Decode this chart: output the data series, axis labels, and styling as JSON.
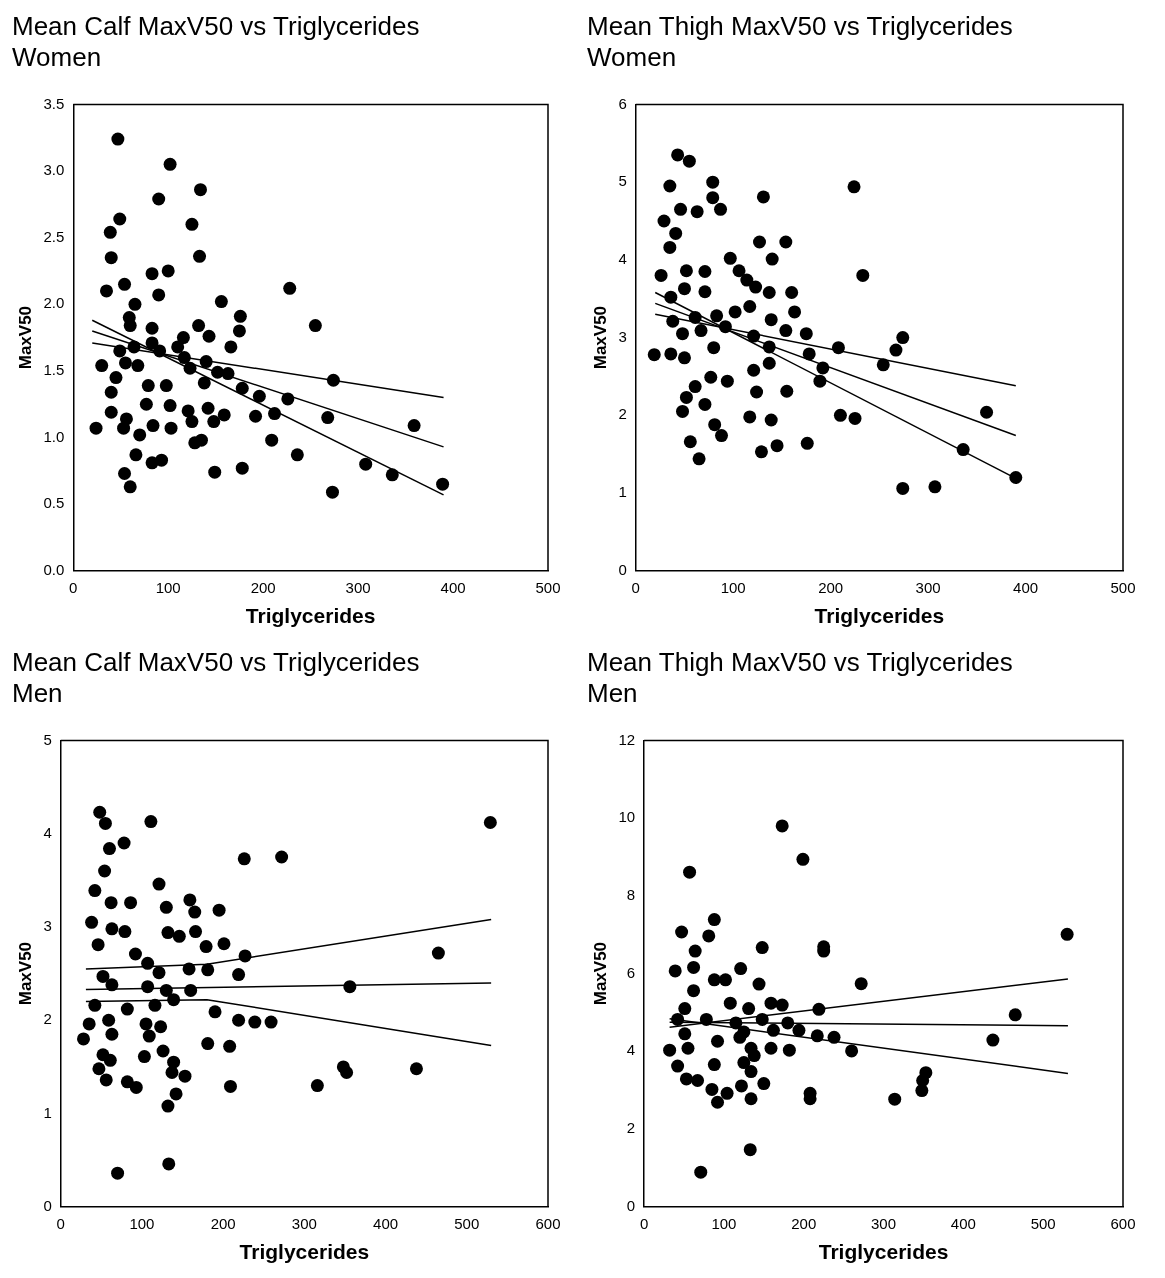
{
  "chart_data": [
    {
      "type": "scatter",
      "title": "Mean Calf MaxV50 vs Triglycerides",
      "subtitle": "Women",
      "xlabel": "Triglycerides",
      "ylabel": "MaxV50",
      "xlim": [
        0,
        500
      ],
      "xticks": [
        0,
        100,
        200,
        300,
        400,
        500
      ],
      "ylim": [
        0,
        3.5
      ],
      "yticks": [
        {
          "value": 0,
          "label": "0.0"
        },
        0.5,
        {
          "value": 1,
          "label": "1.0"
        },
        1.5,
        {
          "value": 2,
          "label": "2.0"
        },
        2.5,
        {
          "value": 3,
          "label": "3.0"
        },
        3.5
      ],
      "grid": false,
      "legend": false,
      "marker": "circle",
      "series": [
        {
          "color": "#000000",
          "x": [
            47,
            102,
            90,
            134,
            49,
            39,
            125,
            40,
            133,
            83,
            100,
            35,
            54,
            90,
            228,
            156,
            176,
            175,
            255,
            65,
            59,
            83,
            132,
            143,
            166,
            116,
            30,
            49,
            64,
            68,
            91,
            117,
            140,
            163,
            45,
            40,
            79,
            98,
            138,
            178,
            196,
            226,
            274,
            77,
            102,
            121,
            142,
            159,
            192,
            212,
            268,
            40,
            56,
            24,
            53,
            84,
            103,
            125,
            148,
            359,
            70,
            135,
            128,
            209,
            66,
            83,
            93,
            54,
            60,
            149,
            178,
            236,
            308,
            336,
            389,
            273,
            60,
            55,
            83,
            123,
            110,
            152
          ],
          "values": [
            3.24,
            3.05,
            2.79,
            2.86,
            2.64,
            2.54,
            2.6,
            2.35,
            2.36,
            2.23,
            2.25,
            2.1,
            2.15,
            2.07,
            2.12,
            2.02,
            1.91,
            1.8,
            1.84,
            2.0,
            1.9,
            1.82,
            1.84,
            1.76,
            1.68,
            1.75,
            1.54,
            1.65,
            1.68,
            1.54,
            1.65,
            1.6,
            1.57,
            1.48,
            1.45,
            1.34,
            1.39,
            1.39,
            1.41,
            1.37,
            1.31,
            1.29,
            1.43,
            1.25,
            1.24,
            1.2,
            1.22,
            1.17,
            1.16,
            1.18,
            1.15,
            1.19,
            1.14,
            1.07,
            1.07,
            1.09,
            1.07,
            1.12,
            1.12,
            1.09,
            1.02,
            0.98,
            0.96,
            0.98,
            0.87,
            0.81,
            0.83,
            0.73,
            0.63,
            0.74,
            0.77,
            0.87,
            0.8,
            0.72,
            0.65,
            0.59,
            1.84,
            1.56,
            1.71,
            1.52,
            1.68,
            1.49
          ]
        },
        {
          "type": "line",
          "marker": "none",
          "color": "#000000",
          "x": [
            20,
            390
          ],
          "values": [
            1.88,
            0.57
          ]
        },
        {
          "type": "line",
          "marker": "none",
          "color": "#000000",
          "x": [
            20,
            390
          ],
          "values": [
            1.71,
            1.3
          ]
        },
        {
          "type": "line",
          "marker": "none",
          "color": "#000000",
          "x": [
            20,
            390
          ],
          "values": [
            1.8,
            0.93
          ]
        }
      ]
    },
    {
      "type": "scatter",
      "title": "Mean Thigh MaxV50 vs Triglycerides",
      "subtitle": "Women",
      "xlabel": "Triglycerides",
      "ylabel": "MaxV50",
      "xlim": [
        0,
        500
      ],
      "xticks": [
        0,
        100,
        200,
        300,
        400,
        500
      ],
      "ylim": [
        0,
        6
      ],
      "yticks": [
        0,
        1,
        2,
        3,
        4,
        5,
        6
      ],
      "grid": false,
      "legend": false,
      "marker": "circle",
      "series": [
        {
          "color": "#000000",
          "x": [
            43,
            55,
            35,
            79,
            131,
            224,
            79,
            87,
            46,
            63,
            29,
            41,
            35,
            127,
            154,
            140,
            97,
            233,
            26,
            52,
            71,
            106,
            36,
            50,
            71,
            114,
            123,
            137,
            160,
            163,
            38,
            61,
            83,
            102,
            117,
            139,
            48,
            67,
            92,
            121,
            154,
            175,
            19,
            36,
            50,
            80,
            137,
            178,
            208,
            274,
            267,
            254,
            121,
            137,
            192,
            189,
            77,
            94,
            61,
            124,
            155,
            52,
            71,
            48,
            117,
            139,
            210,
            225,
            360,
            81,
            88,
            56,
            65,
            129,
            145,
            176,
            336,
            390,
            274,
            307
          ],
          "values": [
            5.35,
            5.27,
            4.95,
            5.0,
            4.81,
            4.94,
            4.8,
            4.65,
            4.65,
            4.62,
            4.5,
            4.34,
            4.16,
            4.23,
            4.23,
            4.01,
            4.02,
            3.8,
            3.8,
            3.86,
            3.85,
            3.86,
            3.52,
            3.63,
            3.59,
            3.74,
            3.65,
            3.58,
            3.58,
            3.33,
            3.21,
            3.26,
            3.28,
            3.33,
            3.4,
            3.23,
            3.05,
            3.09,
            3.14,
            3.02,
            3.09,
            3.05,
            2.78,
            2.79,
            2.74,
            2.87,
            2.88,
            2.79,
            2.87,
            3.0,
            2.84,
            2.65,
            2.58,
            2.67,
            2.61,
            2.44,
            2.49,
            2.44,
            2.37,
            2.3,
            2.31,
            2.23,
            2.14,
            2.05,
            1.98,
            1.94,
            2.0,
            1.96,
            2.04,
            1.88,
            1.74,
            1.66,
            1.44,
            1.53,
            1.61,
            1.64,
            1.56,
            1.2,
            1.06,
            1.08
          ]
        },
        {
          "type": "line",
          "marker": "none",
          "color": "#000000",
          "x": [
            20,
            390
          ],
          "values": [
            3.58,
            1.19
          ]
        },
        {
          "type": "line",
          "marker": "none",
          "color": "#000000",
          "x": [
            20,
            390
          ],
          "values": [
            3.3,
            2.38
          ]
        },
        {
          "type": "line",
          "marker": "none",
          "color": "#000000",
          "x": [
            20,
            390
          ],
          "values": [
            3.44,
            1.74
          ]
        }
      ]
    },
    {
      "type": "scatter",
      "title": "Mean Calf MaxV50 vs Triglycerides",
      "subtitle": "Men",
      "xlabel": "Triglycerides",
      "ylabel": "MaxV50",
      "xlim": [
        0,
        600
      ],
      "xticks": [
        0,
        100,
        200,
        300,
        400,
        500,
        600
      ],
      "ylim": [
        0,
        5
      ],
      "yticks": [
        0,
        1,
        2,
        3,
        4,
        5
      ],
      "grid": false,
      "legend": false,
      "marker": "circle",
      "series": [
        {
          "color": "#000000",
          "x": [
            48,
            55,
            111,
            529,
            60,
            78,
            226,
            272,
            54,
            42,
            121,
            62,
            86,
            130,
            159,
            165,
            195,
            38,
            63,
            79,
            132,
            146,
            166,
            46,
            179,
            201,
            92,
            227,
            465,
            107,
            158,
            181,
            52,
            121,
            219,
            63,
            107,
            130,
            160,
            356,
            42,
            82,
            116,
            139,
            190,
            35,
            59,
            105,
            123,
            219,
            239,
            259,
            28,
            63,
            109,
            181,
            208,
            126,
            52,
            103,
            139,
            61,
            47,
            137,
            153,
            348,
            352,
            438,
            56,
            82,
            93,
            209,
            316,
            142,
            132,
            133,
            70
          ],
          "values": [
            4.23,
            4.11,
            4.13,
            4.12,
            3.84,
            3.9,
            3.73,
            3.75,
            3.6,
            3.39,
            3.46,
            3.26,
            3.26,
            3.21,
            3.29,
            3.16,
            3.18,
            3.05,
            2.98,
            2.95,
            2.94,
            2.9,
            2.95,
            2.81,
            2.79,
            2.82,
            2.71,
            2.69,
            2.72,
            2.61,
            2.55,
            2.54,
            2.47,
            2.51,
            2.49,
            2.38,
            2.36,
            2.32,
            2.32,
            2.36,
            2.16,
            2.12,
            2.16,
            2.22,
            2.09,
            1.96,
            2.0,
            1.96,
            1.93,
            2.0,
            1.98,
            1.98,
            1.8,
            1.85,
            1.83,
            1.75,
            1.72,
            1.67,
            1.63,
            1.61,
            1.55,
            1.57,
            1.48,
            1.44,
            1.4,
            1.5,
            1.44,
            1.48,
            1.36,
            1.34,
            1.28,
            1.29,
            1.3,
            1.21,
            1.08,
            0.46,
            0.36
          ]
        },
        {
          "type": "line",
          "marker": "none",
          "color": "#000000",
          "x": [
            31,
            180,
            530
          ],
          "values": [
            2.55,
            2.6,
            3.08
          ]
        },
        {
          "type": "line",
          "marker": "none",
          "color": "#000000",
          "x": [
            31,
            530
          ],
          "values": [
            2.33,
            2.4
          ]
        },
        {
          "type": "line",
          "marker": "none",
          "color": "#000000",
          "x": [
            31,
            180,
            530
          ],
          "values": [
            2.2,
            2.22,
            1.73
          ]
        }
      ]
    },
    {
      "type": "scatter",
      "title": "Mean Thigh MaxV50 vs Triglycerides",
      "subtitle": "Men",
      "xlabel": "Triglycerides",
      "ylabel": "MaxV50",
      "xlim": [
        0,
        600
      ],
      "xticks": [
        0,
        100,
        200,
        300,
        400,
        500,
        600
      ],
      "ylim": [
        0,
        12
      ],
      "yticks": [
        0,
        2,
        4,
        6,
        8,
        10,
        12
      ],
      "grid": false,
      "legend": false,
      "marker": "circle",
      "series": [
        {
          "color": "#000000",
          "x": [
            173,
            199,
            57,
            88,
            47,
            81,
            530,
            64,
            148,
            225,
            225,
            39,
            62,
            121,
            102,
            272,
            88,
            144,
            62,
            51,
            108,
            131,
            159,
            173,
            219,
            465,
            42,
            78,
            115,
            148,
            180,
            194,
            51,
            92,
            125,
            162,
            217,
            238,
            437,
            32,
            55,
            120,
            134,
            159,
            182,
            260,
            42,
            88,
            125,
            138,
            53,
            67,
            134,
            150,
            353,
            349,
            85,
            104,
            122,
            92,
            134,
            208,
            208,
            314,
            348,
            133,
            71
          ],
          "values": [
            9.8,
            8.94,
            8.61,
            7.39,
            7.07,
            6.97,
            7.01,
            6.58,
            6.67,
            6.69,
            6.58,
            6.07,
            6.16,
            6.13,
            5.84,
            5.74,
            5.84,
            5.73,
            5.56,
            5.1,
            5.24,
            5.1,
            5.24,
            5.19,
            5.08,
            4.94,
            4.82,
            4.82,
            4.73,
            4.82,
            4.73,
            4.54,
            4.45,
            4.26,
            4.5,
            4.54,
            4.4,
            4.36,
            4.29,
            4.03,
            4.08,
            4.36,
            4.08,
            4.08,
            4.03,
            4.01,
            3.62,
            3.66,
            3.71,
            3.89,
            3.29,
            3.25,
            3.48,
            3.17,
            3.45,
            3.25,
            3.02,
            2.92,
            3.11,
            2.69,
            2.78,
            2.92,
            2.78,
            2.77,
            2.99,
            1.47,
            0.89
          ]
        },
        {
          "type": "line",
          "marker": "none",
          "color": "#000000",
          "x": [
            32,
            531
          ],
          "values": [
            4.62,
            5.86
          ]
        },
        {
          "type": "line",
          "marker": "none",
          "color": "#000000",
          "x": [
            32,
            531
          ],
          "values": [
            4.75,
            4.66
          ]
        },
        {
          "type": "line",
          "marker": "none",
          "color": "#000000",
          "x": [
            32,
            531
          ],
          "values": [
            4.84,
            3.43
          ]
        }
      ]
    }
  ]
}
